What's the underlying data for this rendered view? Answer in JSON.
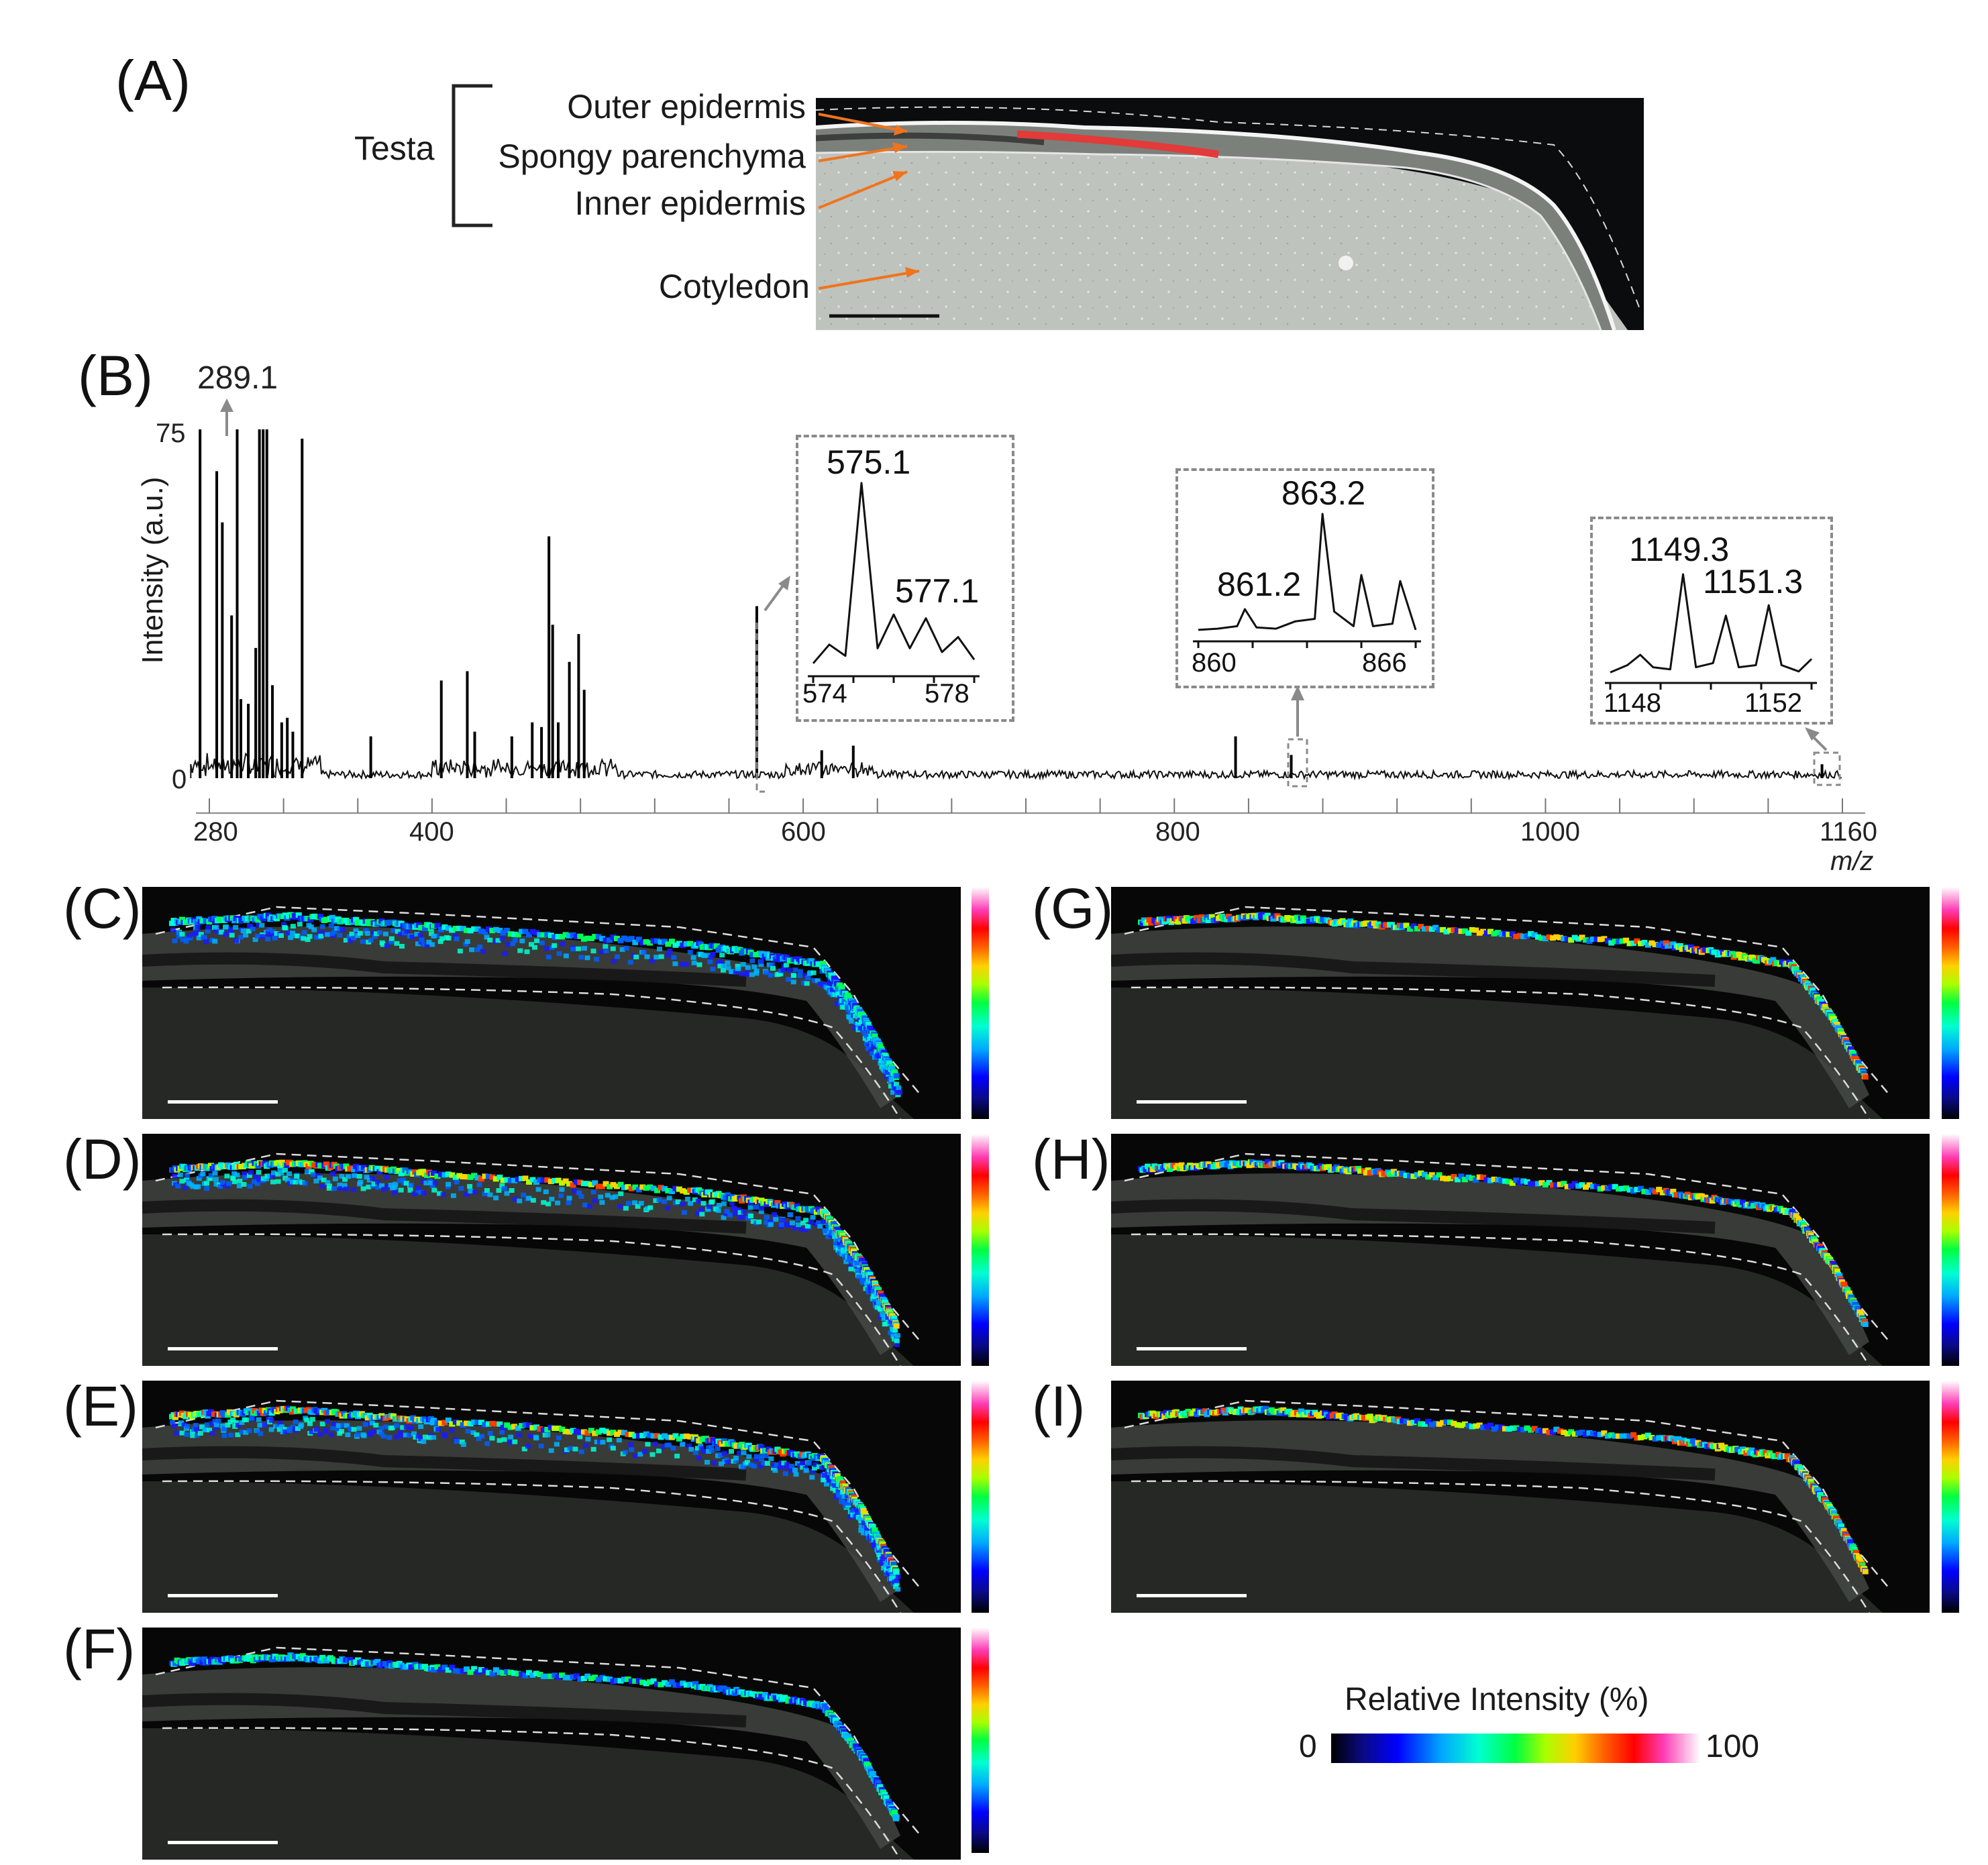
{
  "panel_labels": {
    "A": "(A)",
    "B": "(B)",
    "C": "(C)",
    "D": "(D)",
    "E": "(E)",
    "F": "(F)",
    "G": "(G)",
    "H": "(H)",
    "I": "(I)"
  },
  "anatomy": {
    "testa": "Testa",
    "outer_epidermis": "Outer epidermis",
    "spongy_parenchyma": "Spongy parenchyma",
    "inner_epidermis": "Inner epidermis",
    "cotyledon": "Cotyledon"
  },
  "chart_data": {
    "type": "line",
    "xlabel": "m/z",
    "ylabel": "Intensity (a.u.)",
    "xlim": [
      270,
      1160
    ],
    "ylim": [
      0,
      75
    ],
    "x_ticks": [
      "280",
      "400",
      "600",
      "800",
      "1000",
      "1160"
    ],
    "y_ticks": [
      "75",
      "0"
    ],
    "annotations": [
      "289.1"
    ],
    "peaks": [
      {
        "mz": 275,
        "y": 75
      },
      {
        "mz": 284,
        "y": 66
      },
      {
        "mz": 287,
        "y": 55
      },
      {
        "mz": 292,
        "y": 35
      },
      {
        "mz": 295,
        "y": 75
      },
      {
        "mz": 297,
        "y": 17
      },
      {
        "mz": 301,
        "y": 16
      },
      {
        "mz": 305,
        "y": 28
      },
      {
        "mz": 307,
        "y": 75
      },
      {
        "mz": 309,
        "y": 75
      },
      {
        "mz": 311,
        "y": 75
      },
      {
        "mz": 314,
        "y": 20
      },
      {
        "mz": 319,
        "y": 12
      },
      {
        "mz": 322,
        "y": 13
      },
      {
        "mz": 325,
        "y": 10
      },
      {
        "mz": 330,
        "y": 73
      },
      {
        "mz": 367,
        "y": 9
      },
      {
        "mz": 405,
        "y": 21
      },
      {
        "mz": 419,
        "y": 23
      },
      {
        "mz": 423,
        "y": 10
      },
      {
        "mz": 443,
        "y": 9
      },
      {
        "mz": 454,
        "y": 12
      },
      {
        "mz": 459,
        "y": 11
      },
      {
        "mz": 463,
        "y": 52
      },
      {
        "mz": 465,
        "y": 33
      },
      {
        "mz": 468,
        "y": 12
      },
      {
        "mz": 474,
        "y": 25
      },
      {
        "mz": 479,
        "y": 31
      },
      {
        "mz": 482,
        "y": 19
      },
      {
        "mz": 575,
        "y": 37
      },
      {
        "mz": 610,
        "y": 6
      },
      {
        "mz": 627,
        "y": 7
      },
      {
        "mz": 833,
        "y": 9
      },
      {
        "mz": 863,
        "y": 5
      },
      {
        "mz": 1149,
        "y": 3
      }
    ],
    "insets": [
      {
        "peak_labels": [
          "575.1",
          "577.1"
        ],
        "x_ticks": [
          "574",
          "578"
        ],
        "x": [
          573.5,
          574.0,
          574.5,
          575.0,
          575.5,
          576.0,
          576.5,
          577.0,
          577.5,
          578.0,
          578.5
        ],
        "y": [
          4,
          14,
          8,
          100,
          12,
          30,
          12,
          28,
          10,
          18,
          6
        ]
      },
      {
        "peak_labels": [
          "863.2",
          "861.2"
        ],
        "x_ticks": [
          "860",
          "866"
        ],
        "x": [
          860.0,
          860.5,
          861.0,
          861.2,
          861.5,
          862.0,
          862.5,
          863.0,
          863.2,
          863.5,
          864.0,
          864.2,
          864.5,
          865.0,
          865.2,
          865.6
        ],
        "y": [
          5,
          6,
          8,
          22,
          7,
          6,
          12,
          14,
          100,
          20,
          8,
          50,
          8,
          10,
          45,
          5
        ]
      },
      {
        "peak_labels": [
          "1149.3",
          "1151.3"
        ],
        "x_ticks": [
          "1148",
          "1152"
        ],
        "x": [
          1147.6,
          1148.0,
          1148.3,
          1148.6,
          1149.0,
          1149.3,
          1149.6,
          1150.0,
          1150.3,
          1150.6,
          1151.0,
          1151.3,
          1151.6,
          1152.0,
          1152.3
        ],
        "y": [
          5,
          12,
          22,
          10,
          8,
          100,
          10,
          14,
          60,
          10,
          12,
          70,
          12,
          6,
          18
        ]
      }
    ]
  },
  "colorbar": {
    "title": "Relative Intensity (%)",
    "min_label": "0",
    "max_label": "100"
  }
}
